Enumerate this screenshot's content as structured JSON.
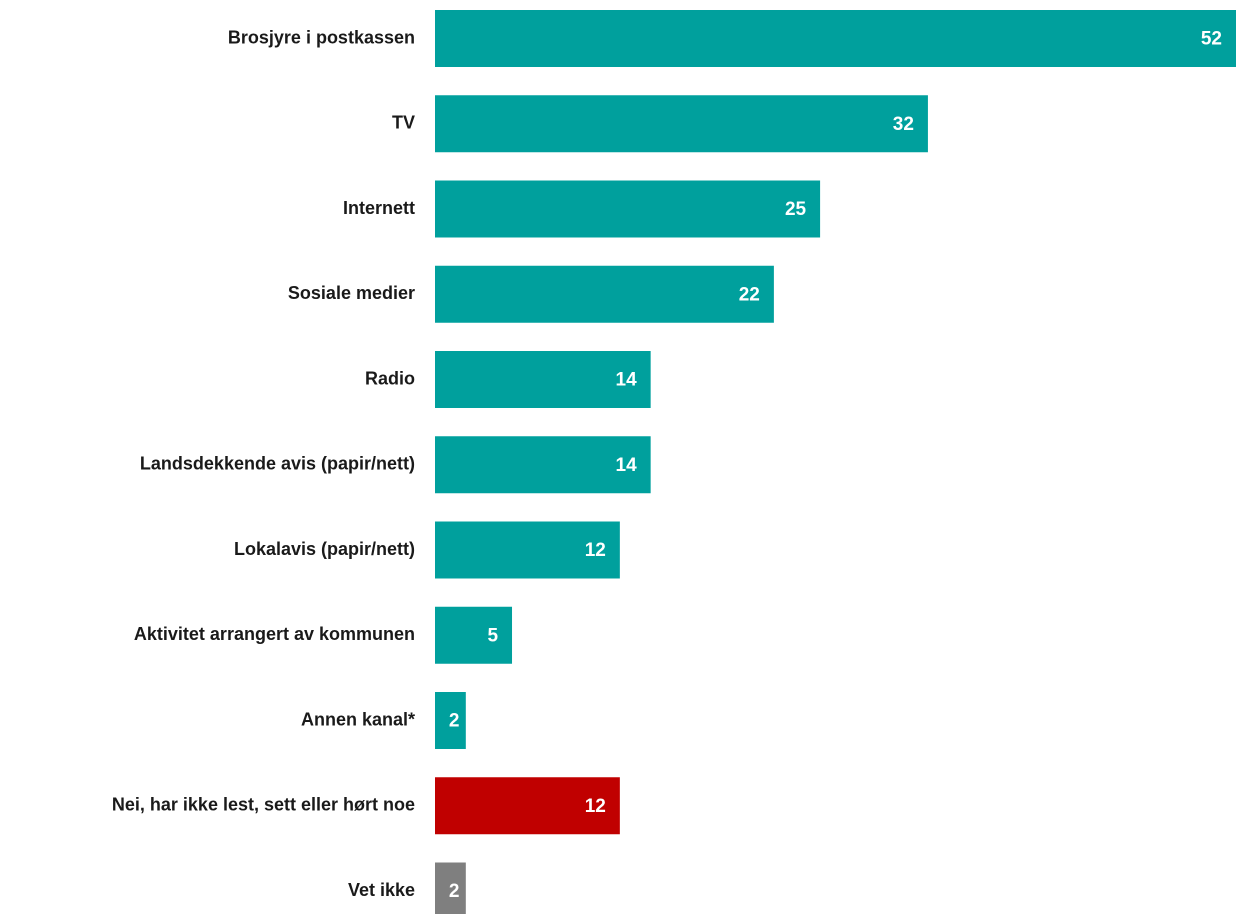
{
  "chart_data": {
    "type": "hbar",
    "categories": [
      "Brosjyre i postkassen",
      "TV",
      "Internett",
      "Sosiale medier",
      "Radio",
      "Landsdekkende avis (papir/nett)",
      "Lokalavis (papir/nett)",
      "Aktivitet arrangert av kommunen",
      "Annen kanal*",
      "Nei, har ikke lest, sett eller hørt noe",
      "Vet ikke"
    ],
    "values": [
      52,
      32,
      25,
      22,
      14,
      14,
      12,
      5,
      2,
      12,
      2
    ],
    "colors": [
      "#00a09d",
      "#00a09d",
      "#00a09d",
      "#00a09d",
      "#00a09d",
      "#00a09d",
      "#00a09d",
      "#00a09d",
      "#00a09d",
      "#c00000",
      "#7f7f7f"
    ]
  }
}
